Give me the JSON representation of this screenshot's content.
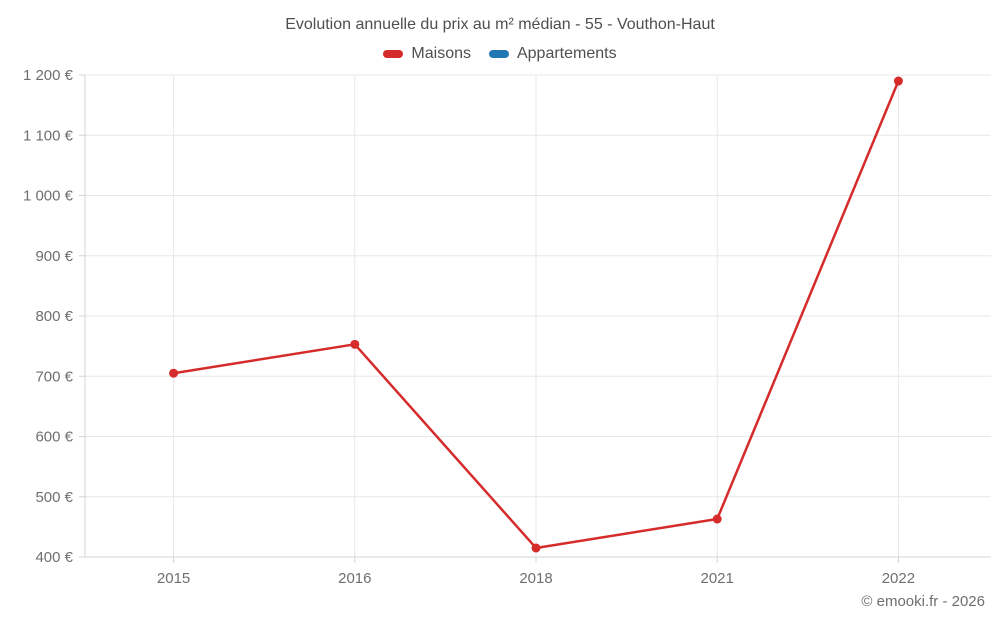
{
  "chart": {
    "title": "Evolution annuelle du prix au m² médian - 55 - Vouthon-Haut",
    "legend": [
      {
        "label": "Maisons",
        "color": "#d62b2b"
      },
      {
        "label": "Appartements",
        "color": "#1f77b4"
      }
    ],
    "footer": "© emooki.fr - 2026"
  },
  "chart_data": {
    "type": "line",
    "title": "Evolution annuelle du prix au m² médian - 55 - Vouthon-Haut",
    "categories": [
      "2015",
      "2016",
      "2018",
      "2021",
      "2022"
    ],
    "series": [
      {
        "name": "Maisons",
        "color": "#d62b2b",
        "values": [
          705,
          753,
          415,
          463,
          1190
        ]
      },
      {
        "name": "Appartements",
        "color": "#1f77b4",
        "values": []
      }
    ],
    "xlabel": "",
    "ylabel": "",
    "ylim": [
      400,
      1200
    ],
    "y_ticks": [
      400,
      500,
      600,
      700,
      800,
      900,
      1000,
      1100,
      1200
    ],
    "y_tick_labels": [
      "400 €",
      "500 €",
      "600 €",
      "700 €",
      "800 €",
      "900 €",
      "1 000 €",
      "1 100 €",
      "1 200 €"
    ],
    "currency_suffix": " €",
    "grid": true,
    "legend_position": "top",
    "marker": "circle"
  }
}
